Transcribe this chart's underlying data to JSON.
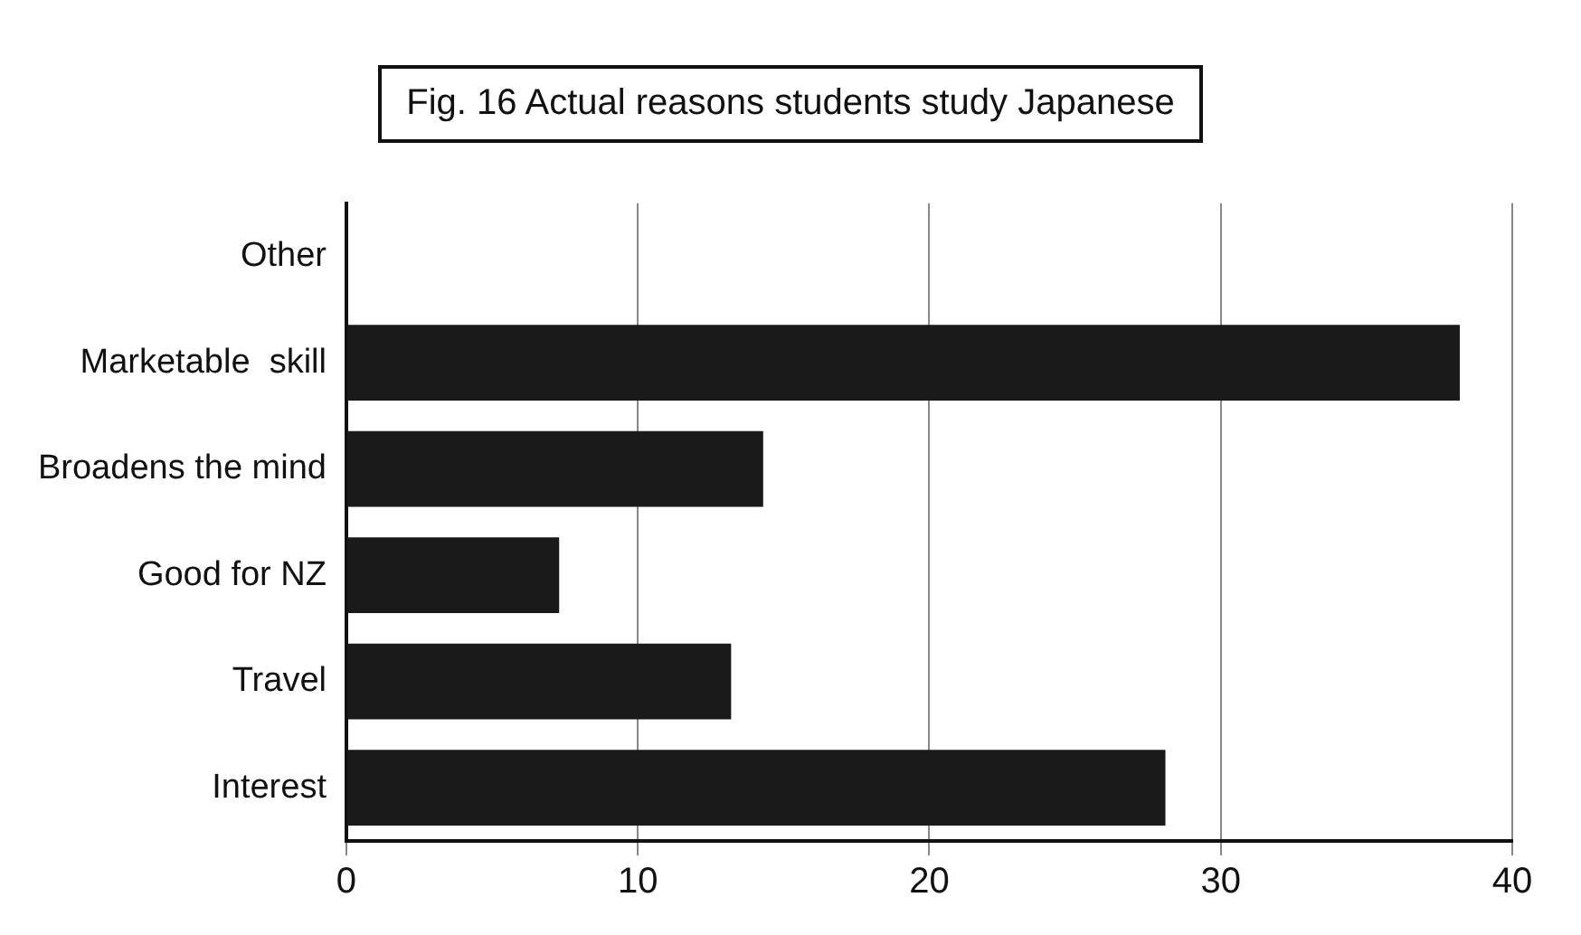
{
  "chart_data": {
    "type": "bar",
    "orientation": "horizontal",
    "title": "Fig. 16 Actual reasons students study Japanese",
    "categories": [
      "Other",
      "Marketable  skill",
      "Broadens the mind",
      "Good for NZ",
      "Travel",
      "Interest"
    ],
    "values": [
      0,
      38.2,
      14.3,
      7.3,
      13.2,
      28.1
    ],
    "color": "#1a1a1a",
    "xlim": [
      0,
      40
    ],
    "xticks": [
      0,
      10,
      20,
      30,
      40
    ],
    "grid": "x"
  }
}
